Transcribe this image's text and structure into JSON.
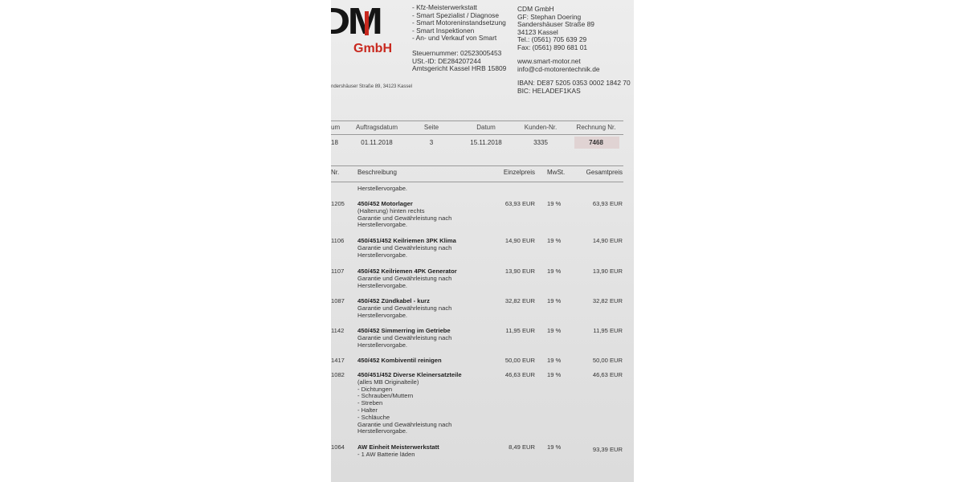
{
  "letterhead": {
    "logo_text": "DM",
    "logo_sub": "GmbH",
    "services": [
      "- Kfz-Meisterwerkstatt",
      "- Smart Spezialist / Diagnose",
      "- Smart Motoreninstandsetzung",
      "- Smart Inspektionen",
      "- An- und Verkauf von Smart"
    ],
    "tax": [
      "Steuernummer: 02523005453",
      "USt.-ID: DE284207244",
      "Amtsgericht Kassel HRB 15809"
    ],
    "company": [
      "CDM GmbH",
      "GF: Stephan Doering",
      "Sandershäuser Straße 89",
      "34123 Kassel",
      "Tel.: (0561) 705 639 29",
      "Fax: (0561) 890 681 01"
    ],
    "web": [
      "www.smart-motor.net",
      "info@cd-motorentechnik.de"
    ],
    "bank": [
      "IBAN: DE87 5205 0353 0002 1842 70",
      "BIC: HELADEF1KAS"
    ],
    "sender_line": "ndershäuser Straße 89, 34123 Kassel"
  },
  "info_table": {
    "headers": [
      "um",
      "Auftragsdatum",
      "Seite",
      "Datum",
      "Kunden-Nr.",
      "Rechnung Nr."
    ],
    "values": [
      "18",
      "01.11.2018",
      "3",
      "15.11.2018",
      "3335",
      "7468"
    ]
  },
  "items_table": {
    "headers": {
      "nr": "Nr.",
      "desc": "Beschreibung",
      "unit": "Einzelpreis",
      "vat": "MwSt.",
      "total": "Gesamtpreis"
    },
    "carryover": "Herstellervorgabe.",
    "items": [
      {
        "nr": "1205",
        "title": "450/452 Motorlager",
        "lines": [
          "(Halterung) hinten rechts",
          "Garantie und Gewährleistung nach",
          "Herstellervorgabe."
        ],
        "unit": "63,93 EUR",
        "vat": "19 %",
        "total": "63,93 EUR"
      },
      {
        "nr": "1106",
        "title": "450/451/452 Keilriemen 3PK Klima",
        "lines": [
          "Garantie und Gewährleistung nach",
          "Herstellervorgabe."
        ],
        "unit": "14,90 EUR",
        "vat": "19 %",
        "total": "14,90 EUR"
      },
      {
        "nr": "1107",
        "title": "450/452 Keilriemen 4PK Generator",
        "lines": [
          "Garantie und Gewährleistung nach",
          "Herstellervorgabe."
        ],
        "unit": "13,90 EUR",
        "vat": "19 %",
        "total": "13,90 EUR"
      },
      {
        "nr": "1087",
        "title": "450/452 Zündkabel - kurz",
        "lines": [
          "Garantie und Gewährleistung nach",
          "Herstellervorgabe."
        ],
        "unit": "32,82 EUR",
        "vat": "19 %",
        "total": "32,82 EUR"
      },
      {
        "nr": "1142",
        "title": "450/452 Simmerring im Getriebe",
        "lines": [
          "Garantie und Gewährleistung nach",
          "Herstellervorgabe."
        ],
        "unit": "11,95 EUR",
        "vat": "19 %",
        "total": "11,95 EUR"
      },
      {
        "nr": "1417",
        "title": "450/452 Kombiventil reinigen",
        "lines": [],
        "unit": "50,00 EUR",
        "vat": "19 %",
        "total": "50,00 EUR"
      },
      {
        "nr": "1082",
        "title": "450/451/452 Diverse Kleinersatzteile",
        "lines": [
          "(alles MB Originalteile)",
          "- Dichtungen",
          "- Schrauben/Muttern",
          "- Streben",
          "- Halter",
          "- Schläuche",
          "Garantie und Gewährleistung nach",
          "Herstellervorgabe."
        ],
        "unit": "46,63 EUR",
        "vat": "19 %",
        "total": "46,63 EUR"
      },
      {
        "nr": "1064",
        "title": "AW Einheit Meisterwerkstatt",
        "lines": [
          "- 1 AW Batterie läden"
        ],
        "unit": "8,49 EUR",
        "vat": "19 %",
        "total": "93,39 EUR"
      }
    ]
  },
  "colors": {
    "brand_red": "#c8281e",
    "paper": "#e6e6e6"
  }
}
